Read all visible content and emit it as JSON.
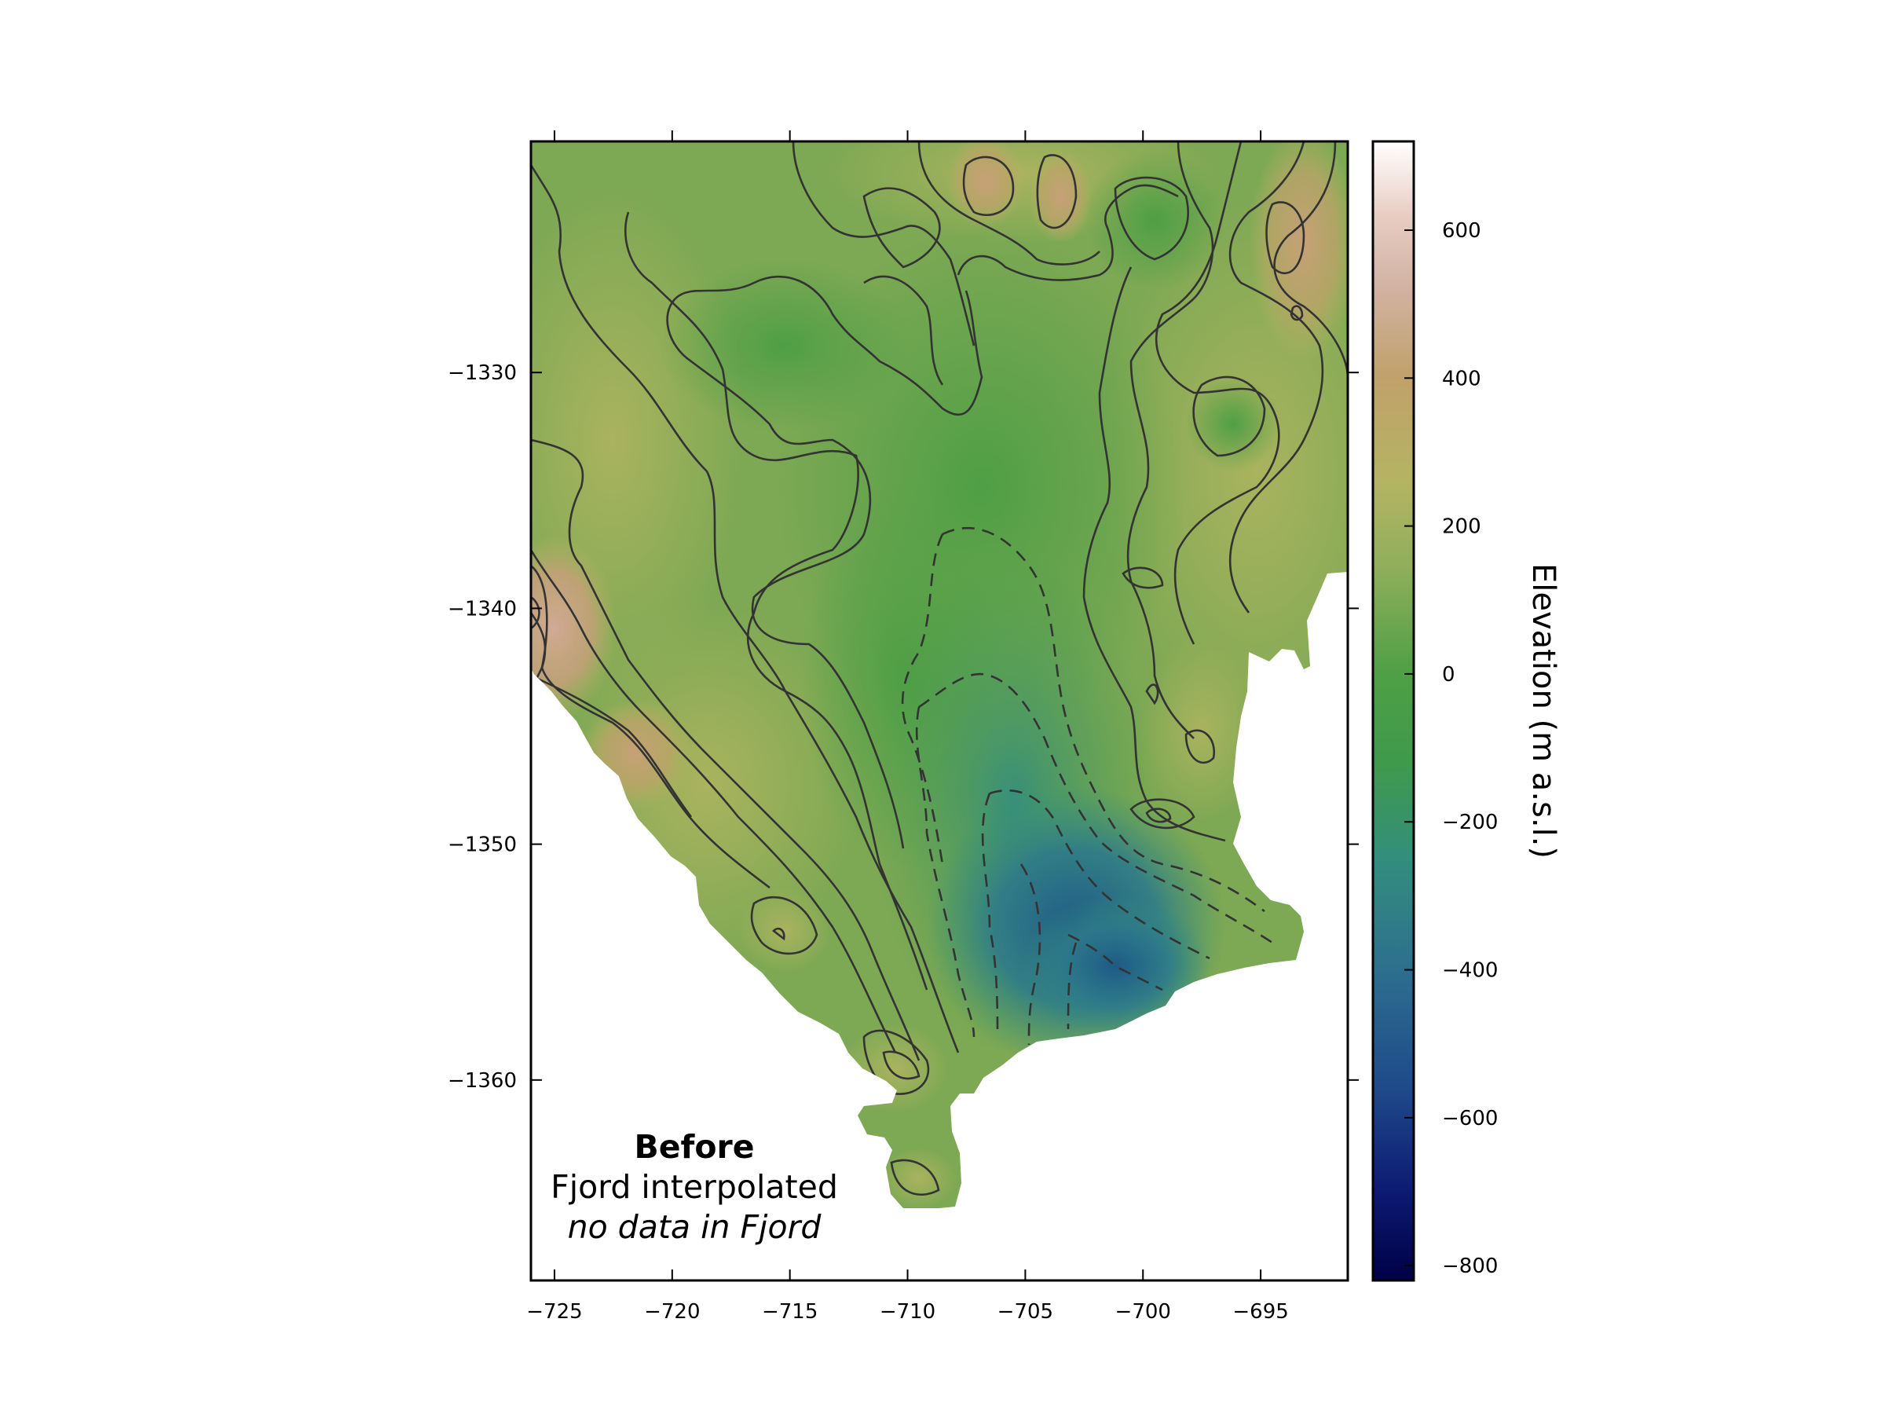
{
  "chart_data": {
    "type": "heatmap",
    "title": "",
    "xlabel": "",
    "ylabel": "",
    "xlim": [
      -726,
      -691.3
    ],
    "ylim": [
      -1368.5,
      -1320.2
    ],
    "x_ticks": [
      -725,
      -720,
      -715,
      -710,
      -705,
      -700,
      -695
    ],
    "y_ticks": [
      -1330,
      -1340,
      -1350,
      -1360
    ],
    "colorbar": {
      "label": "Elevation (m a.s.l.)",
      "range": [
        -820,
        720
      ],
      "ticks": [
        600,
        400,
        200,
        0,
        -200,
        -400,
        -600,
        -800
      ],
      "colormap": "gist_earth-like",
      "stops": [
        {
          "v": -820,
          "color": "#000045"
        },
        {
          "v": -700,
          "color": "#0d1a72"
        },
        {
          "v": -560,
          "color": "#1f4a8a"
        },
        {
          "v": -400,
          "color": "#2d6f8e"
        },
        {
          "v": -250,
          "color": "#338e7c"
        },
        {
          "v": -120,
          "color": "#3f9a4c"
        },
        {
          "v": 0,
          "color": "#4f9f45"
        },
        {
          "v": 150,
          "color": "#92af5c"
        },
        {
          "v": 260,
          "color": "#b4b463"
        },
        {
          "v": 400,
          "color": "#c0a16a"
        },
        {
          "v": 520,
          "color": "#d1b2a2"
        },
        {
          "v": 620,
          "color": "#e8cdc4"
        },
        {
          "v": 720,
          "color": "#ffffff"
        }
      ]
    },
    "annotation": {
      "line1": "Before",
      "line2": "Fjord interpolated",
      "line3": "no data in Fjord"
    },
    "contours": {
      "solid": "elevation >= 0",
      "dashed": "elevation < 0",
      "color": "#333333"
    }
  }
}
